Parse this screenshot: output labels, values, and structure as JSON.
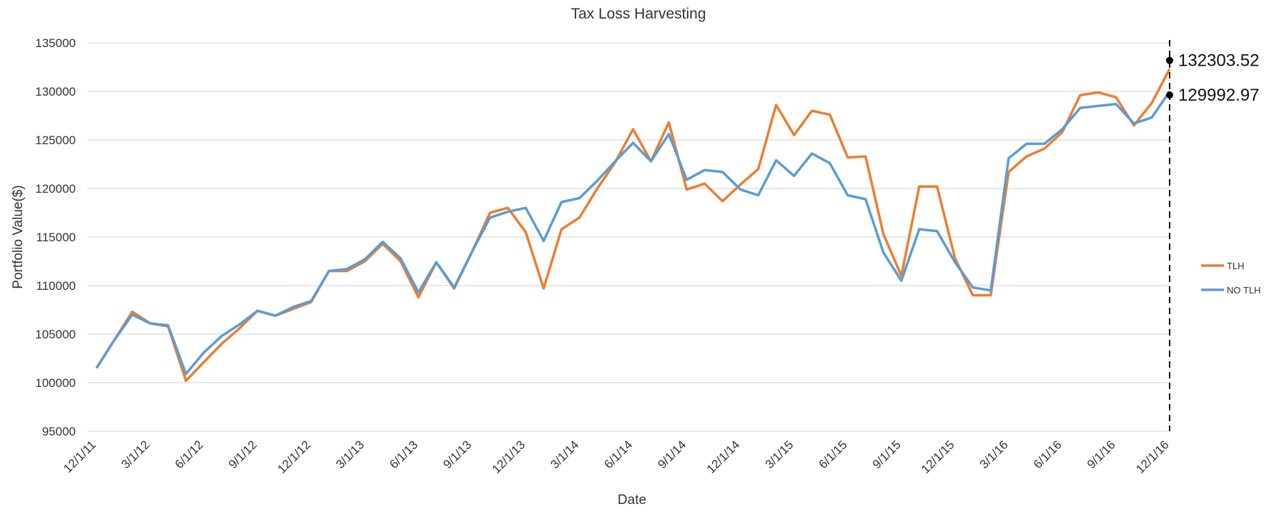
{
  "chart_data": {
    "type": "line",
    "title": "Tax Loss Harvesting",
    "xlabel": "Date",
    "ylabel": "Portfolio Value($)",
    "ylim": [
      95000,
      135000
    ],
    "yticks": [
      95000,
      100000,
      105000,
      110000,
      115000,
      120000,
      125000,
      130000,
      135000
    ],
    "grid": true,
    "legend_position": "right",
    "x": [
      "12/1/11",
      "1/1/12",
      "2/1/12",
      "3/1/12",
      "4/1/12",
      "5/1/12",
      "6/1/12",
      "7/1/12",
      "8/1/12",
      "9/1/12",
      "10/1/12",
      "11/1/12",
      "12/1/12",
      "1/1/13",
      "2/1/13",
      "3/1/13",
      "4/1/13",
      "5/1/13",
      "6/1/13",
      "7/1/13",
      "8/1/13",
      "9/1/13",
      "10/1/13",
      "11/1/13",
      "12/1/13",
      "1/1/14",
      "2/1/14",
      "3/1/14",
      "4/1/14",
      "5/1/14",
      "6/1/14",
      "7/1/14",
      "8/1/14",
      "9/1/14",
      "10/1/14",
      "11/1/14",
      "12/1/14",
      "1/1/15",
      "2/1/15",
      "3/1/15",
      "4/1/15",
      "5/1/15",
      "6/1/15",
      "7/1/15",
      "8/1/15",
      "9/1/15",
      "10/1/15",
      "11/1/15",
      "12/1/15",
      "1/1/16",
      "2/1/16",
      "3/1/16",
      "4/1/16",
      "5/1/16",
      "6/1/16",
      "7/1/16",
      "8/1/16",
      "9/1/16",
      "10/1/16",
      "11/1/16",
      "12/1/16"
    ],
    "x_tick_labels": [
      "12/1/11",
      "3/1/12",
      "6/1/12",
      "9/1/12",
      "12/1/12",
      "3/1/13",
      "6/1/13",
      "9/1/13",
      "12/1/13",
      "3/1/14",
      "6/1/14",
      "9/1/14",
      "12/1/14",
      "3/1/15",
      "6/1/15",
      "9/1/15",
      "12/1/15",
      "3/1/16",
      "6/1/16",
      "9/1/16",
      "12/1/16"
    ],
    "series": [
      {
        "name": "TLH",
        "color": "#ed7d31",
        "values": [
          101500,
          104400,
          107300,
          106100,
          105800,
          100200,
          102100,
          104000,
          105600,
          107400,
          106900,
          107600,
          108300,
          111500,
          111500,
          112500,
          114300,
          112500,
          108800,
          112400,
          109700,
          113500,
          117500,
          118000,
          115500,
          109700,
          115800,
          117000,
          120000,
          122700,
          126100,
          122800,
          126800,
          119900,
          120500,
          118700,
          120400,
          122000,
          128600,
          125500,
          128000,
          127600,
          123200,
          123300,
          115300,
          111000,
          120200,
          120200,
          112800,
          109000,
          109000,
          121700,
          123300,
          124100,
          125800,
          129600,
          129900,
          129400,
          126500,
          128800,
          132303.52
        ]
      },
      {
        "name": "NO TLH",
        "color": "#5b9bd5",
        "values": [
          101500,
          104400,
          107000,
          106100,
          105900,
          100900,
          103100,
          104800,
          106000,
          107400,
          106900,
          107800,
          108400,
          111500,
          111700,
          112700,
          114500,
          112800,
          109300,
          112400,
          109800,
          113500,
          117000,
          117600,
          118000,
          114600,
          118600,
          119000,
          120800,
          122800,
          124700,
          122800,
          125600,
          120900,
          121900,
          121700,
          119900,
          119300,
          122900,
          121300,
          123600,
          122600,
          119300,
          118900,
          113400,
          110500,
          115800,
          115600,
          112400,
          109800,
          109500,
          123100,
          124600,
          124600,
          126100,
          128300,
          128500,
          128700,
          126700,
          127300,
          129992.97
        ]
      }
    ],
    "annotations": [
      {
        "label": "132303.52",
        "series": "TLH",
        "value": 132303.52
      },
      {
        "label": "129992.97",
        "series": "NO TLH",
        "value": 129992.97
      }
    ],
    "marker_line": {
      "at": "12/1/16",
      "style": "dashed",
      "color": "#000000"
    }
  }
}
